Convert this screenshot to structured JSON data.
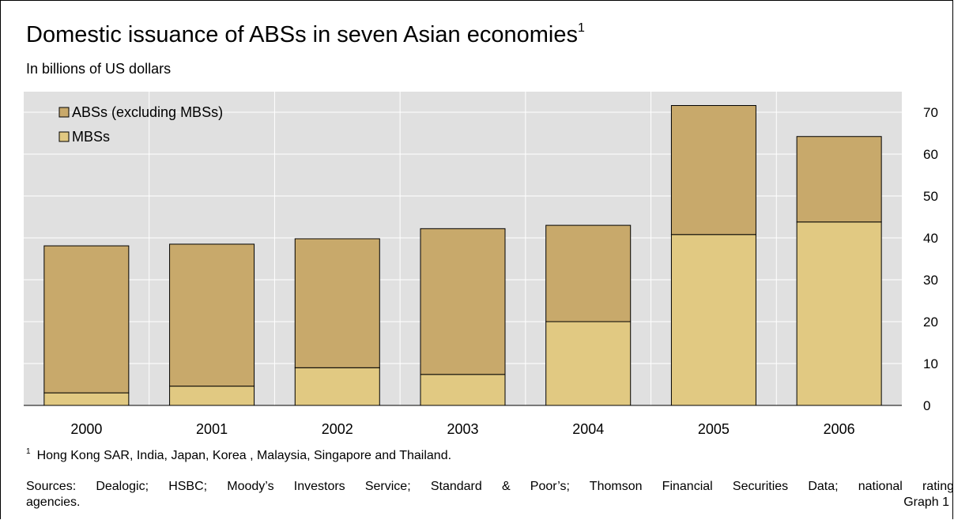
{
  "title": "Domestic issuance of ABSs in seven Asian economies",
  "title_note_marker": "1",
  "subtitle": "In billions of US dollars",
  "footnote": {
    "marker": "1",
    "text": "Hong Kong SAR, India, Japan, Korea , Malaysia, Singapore and Thailand."
  },
  "sources_line1": "Sources: Dealogic; HSBC; Moody’s Investors Service; Standard & Poor’s; Thomson Financial Securities Data; national rating",
  "sources_line2": "agencies.",
  "graph_label": "Graph 1",
  "colors": {
    "plot_background": "#e0e0e0",
    "abs_fill": "#c8a96b",
    "mbs_fill": "#e1c982",
    "gridline": "#ffffff"
  },
  "chart_data": {
    "type": "bar",
    "stacked": true,
    "categories": [
      "2000",
      "2001",
      "2002",
      "2003",
      "2004",
      "2005",
      "2006"
    ],
    "series": [
      {
        "name": "MBSs",
        "values": [
          3,
          4.6,
          9,
          7.4,
          20,
          40.8,
          43.8
        ]
      },
      {
        "name": "ABSs (excluding MBSs)",
        "values": [
          35.1,
          33.9,
          30.8,
          34.8,
          23,
          30.8,
          20.4
        ]
      }
    ],
    "legend": [
      "ABSs (excluding MBSs)",
      "MBSs"
    ],
    "legend_position": "top-left",
    "y_axis_side": "right",
    "ylim": [
      0,
      70
    ],
    "yticks": [
      "0",
      "10",
      "20",
      "30",
      "40",
      "50",
      "60",
      "70"
    ],
    "grid": true,
    "xlabel": "",
    "ylabel": ""
  }
}
